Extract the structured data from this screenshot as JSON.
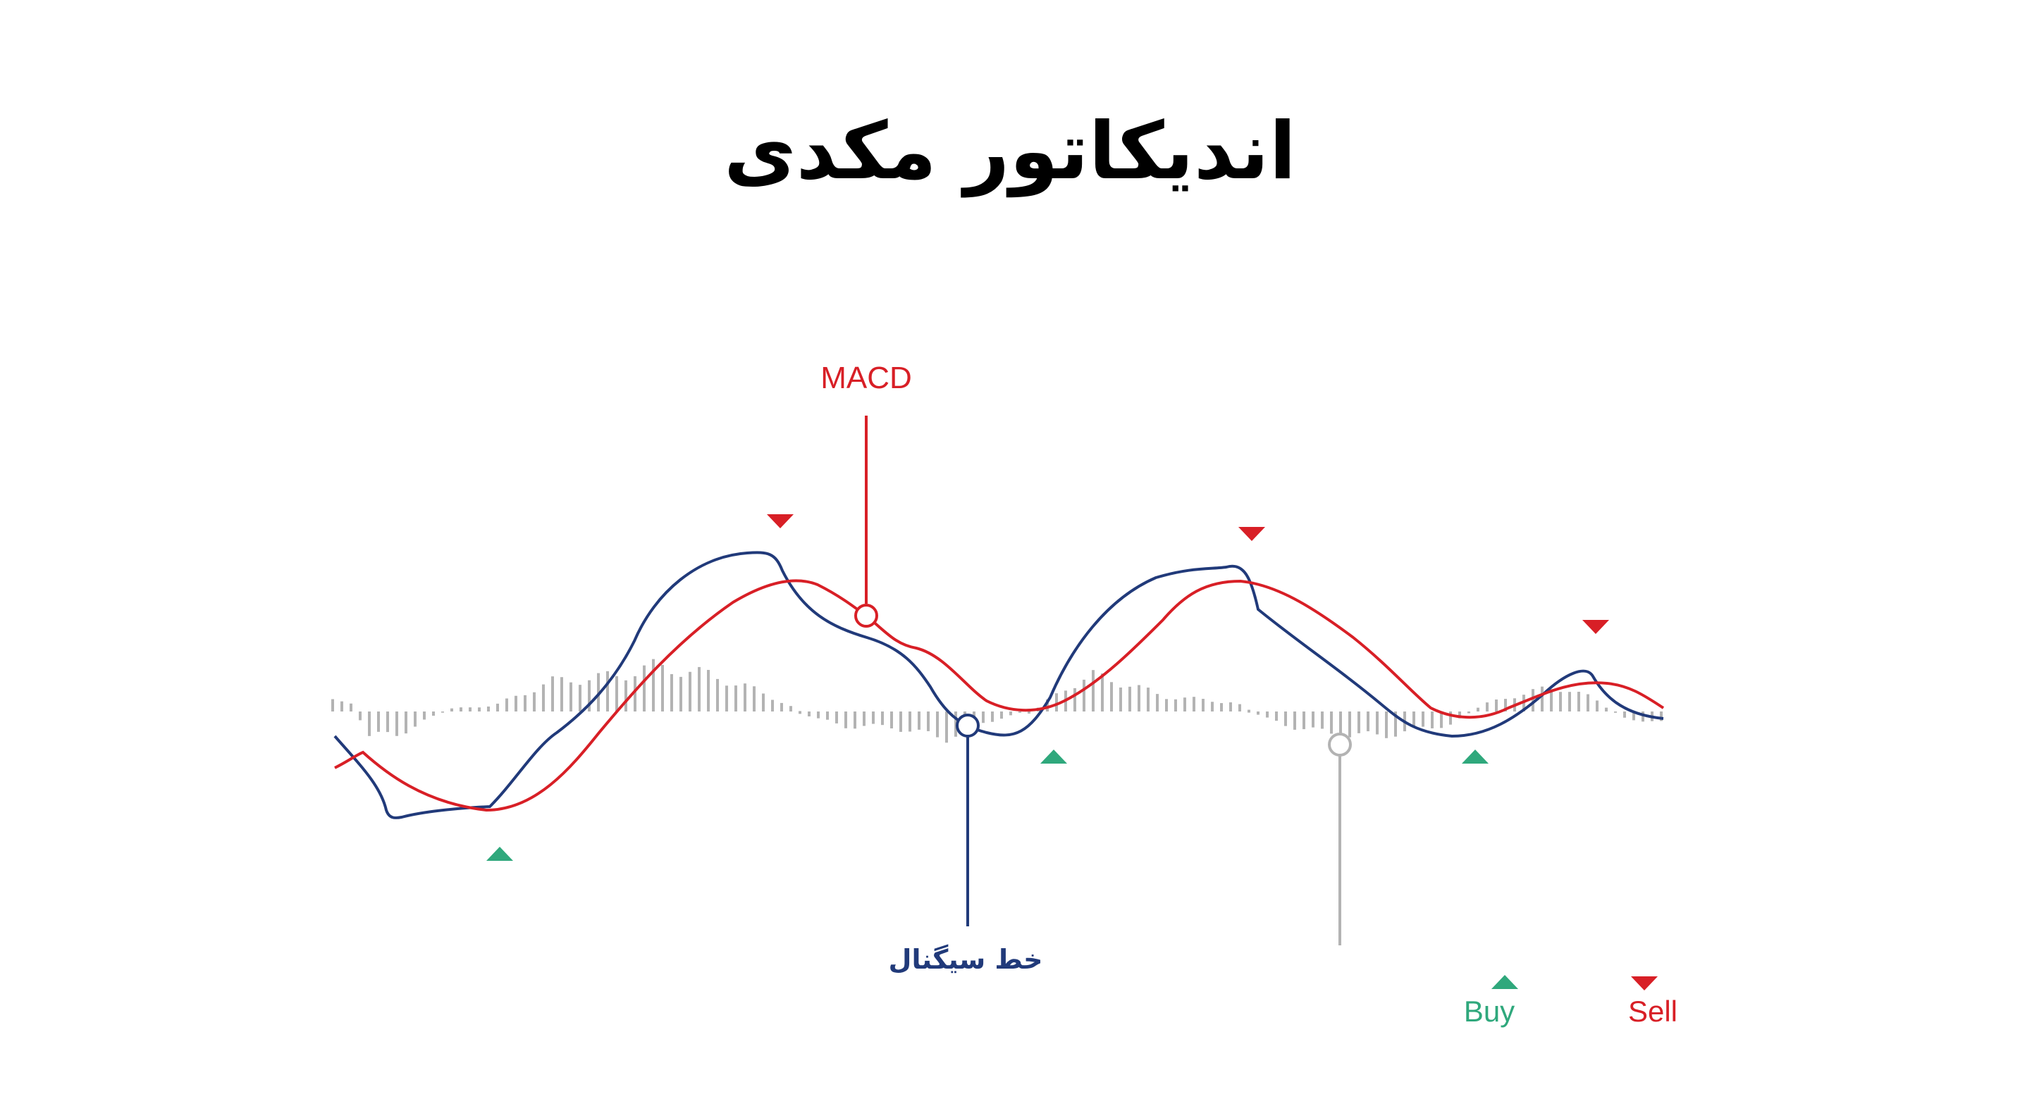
{
  "title": "اندیکاتور مکدی",
  "colors": {
    "macd": "#d81f26",
    "signal": "#213a7a",
    "histogram": "#b3b3b3",
    "buy": "#2fa87c",
    "sell": "#d81f26",
    "title": "#000000"
  },
  "labels": {
    "macd": "MACD",
    "signal": "خط سیگنال"
  },
  "legend": {
    "buy": "Buy",
    "sell": "Sell"
  }
}
